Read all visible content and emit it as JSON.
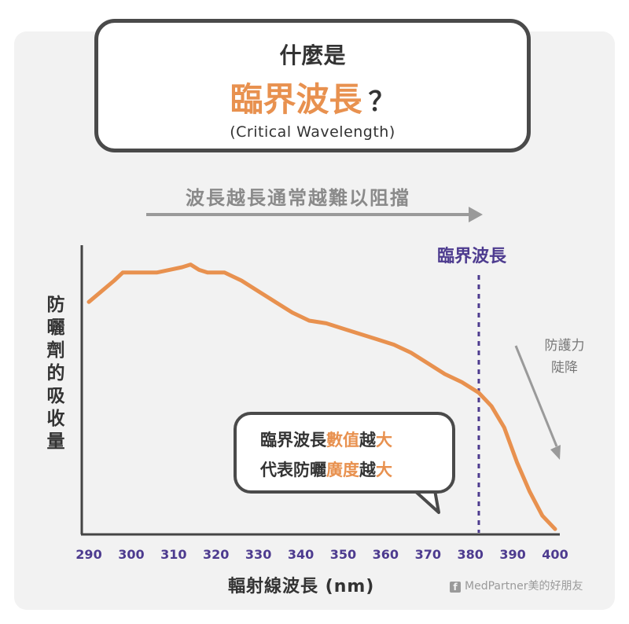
{
  "title": {
    "line1": "什麼是",
    "main": "臨界波長",
    "question": "？",
    "english": "(Critical Wavelength)"
  },
  "arrow_caption": "波長越長通常越難以阻擋",
  "critical_label": "臨界波長",
  "side_note": {
    "line1": "防護力",
    "line2": "陡降"
  },
  "callout": {
    "line1": {
      "a": "臨界波長",
      "b": "數值",
      "c": "越",
      "d": "大"
    },
    "line2": {
      "a": "代表防曬",
      "b": "廣度",
      "c": "越",
      "d": "大"
    }
  },
  "credit": {
    "icon": "facebook-icon",
    "text": "MedPartner美的好朋友"
  },
  "colors": {
    "curve": "#e8914f",
    "accent_purple": "#4d3b8f",
    "arrow_gray": "#9a9a9a",
    "axis": "#444444",
    "panel": "#f2f2f2"
  },
  "chart_data": {
    "type": "line",
    "xlabel": "輻射線波長 (nm)",
    "ylabel": "防曬劑的吸收量",
    "xlim": [
      290,
      400
    ],
    "ylim": [
      0,
      1
    ],
    "x_ticks": [
      290,
      300,
      310,
      320,
      330,
      340,
      350,
      360,
      370,
      380,
      390,
      400
    ],
    "critical_wavelength": 382,
    "series": [
      {
        "x": [
          290,
          293,
          296,
          298,
          300,
          303,
          306,
          309,
          312,
          314,
          316,
          318,
          322,
          326,
          330,
          334,
          338,
          342,
          346,
          350,
          354,
          358,
          362,
          366,
          370,
          374,
          378,
          382,
          385,
          388,
          391,
          394,
          397,
          400
        ],
        "y": [
          0.87,
          0.91,
          0.95,
          0.98,
          0.98,
          0.98,
          0.98,
          0.99,
          1.0,
          1.01,
          0.99,
          0.98,
          0.98,
          0.95,
          0.91,
          0.87,
          0.83,
          0.8,
          0.79,
          0.77,
          0.75,
          0.73,
          0.71,
          0.68,
          0.64,
          0.6,
          0.57,
          0.53,
          0.48,
          0.4,
          0.27,
          0.16,
          0.07,
          0.02
        ]
      }
    ]
  }
}
